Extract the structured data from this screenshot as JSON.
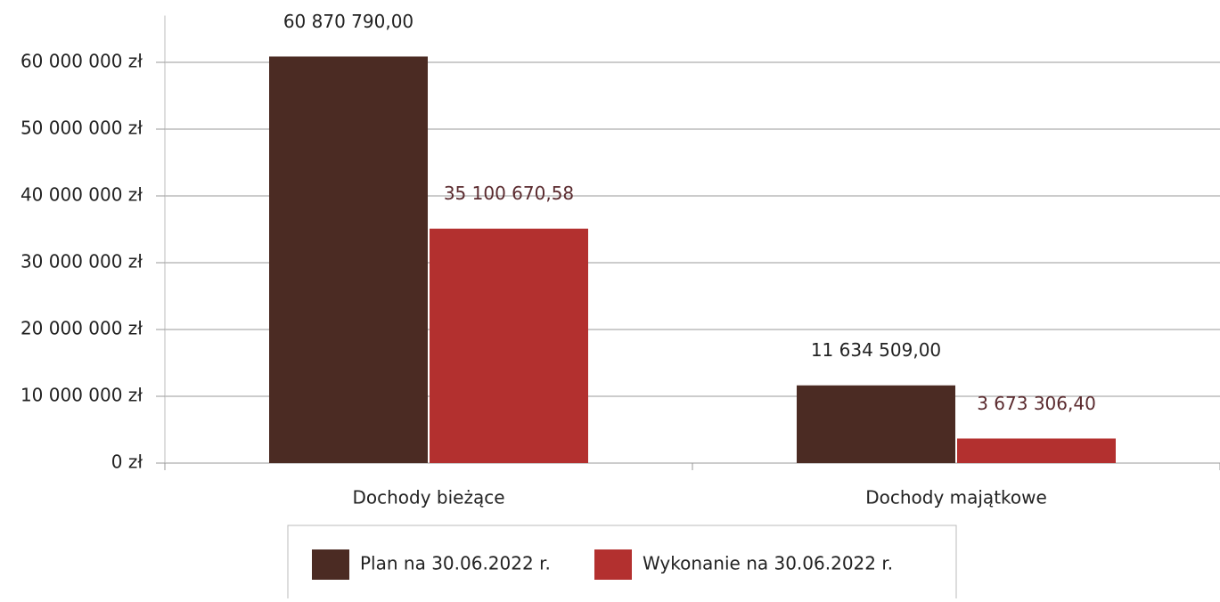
{
  "chart_data": {
    "type": "bar",
    "categories": [
      "Dochody bieżące",
      "Dochody majątkowe"
    ],
    "series": [
      {
        "name": "Plan na 30.06.2022 r.",
        "color": "#4b2b23",
        "values": [
          60870790.0,
          11634509.0
        ],
        "value_labels": [
          "60 870 790,00",
          "11 634 509,00"
        ]
      },
      {
        "name": "Wykonanie na 30.06.2022 r.",
        "color": "#b3302f",
        "values": [
          35100670.58,
          3673306.4
        ],
        "value_labels": [
          "35 100 670,58",
          "3 673 306,40"
        ]
      }
    ],
    "ylim": [
      0,
      67000000
    ],
    "yticks": [
      {
        "value": 0,
        "label": "0 zł"
      },
      {
        "value": 10000000,
        "label": "10 000 000 zł"
      },
      {
        "value": 20000000,
        "label": "20 000 000 zł"
      },
      {
        "value": 30000000,
        "label": "30 000 000 zł"
      },
      {
        "value": 40000000,
        "label": "40 000 000 zł"
      },
      {
        "value": 50000000,
        "label": "50 000 000 zł"
      },
      {
        "value": 60000000,
        "label": "60 000 000 zł"
      }
    ],
    "grid": true,
    "legend": "bottom"
  }
}
